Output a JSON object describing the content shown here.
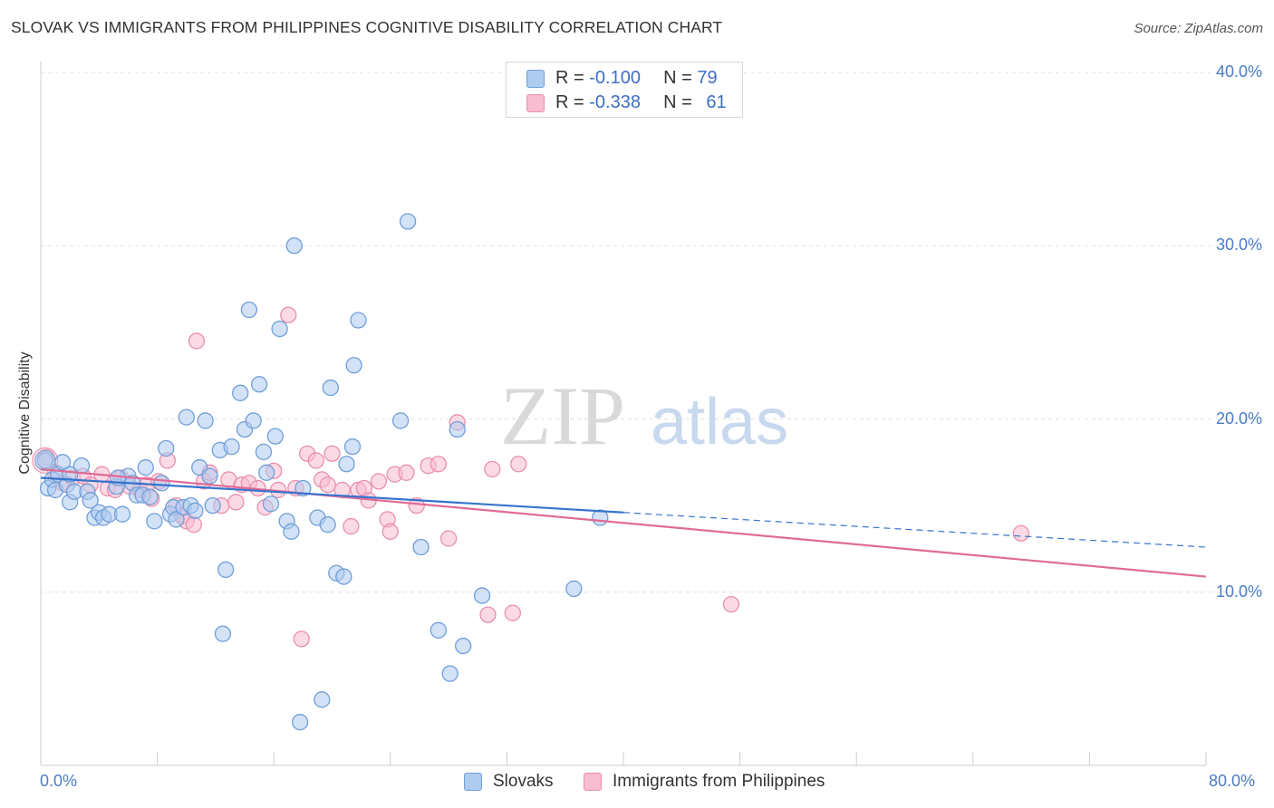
{
  "title": "SLOVAK VS IMMIGRANTS FROM PHILIPPINES COGNITIVE DISABILITY CORRELATION CHART",
  "source": "Source: ZipAtlas.com",
  "watermark": {
    "zip": "ZIP",
    "atlas": "atlas"
  },
  "legend": {
    "rows": [
      {
        "r_label": "R = ",
        "r_value": "-0.100",
        "n_label": "N = ",
        "n_value": "79"
      },
      {
        "r_label": "R = ",
        "r_value": "-0.338",
        "n_label": "N = ",
        "n_value": "61"
      }
    ]
  },
  "colors": {
    "slovaks_fill": "#aecbf0",
    "slovaks_stroke": "#6f9fd8",
    "slovaks_line": "#3674cc",
    "philippines_fill": "#f7bcd0",
    "philippines_stroke": "#e890ae",
    "philippines_line": "#e06a95",
    "grid": "#e2e2e2",
    "tick_text": "#4a7cc4"
  },
  "chart_data": {
    "type": "scatter",
    "title": "SLOVAK VS IMMIGRANTS FROM PHILIPPINES COGNITIVE DISABILITY CORRELATION CHART",
    "xlabel": "",
    "ylabel": "Cognitive Disability",
    "xlim": [
      0,
      80
    ],
    "ylim": [
      0,
      40
    ],
    "y_ticks": [
      "10.0%",
      "20.0%",
      "30.0%",
      "40.0%"
    ],
    "y_tick_values": [
      10,
      20,
      30,
      40
    ],
    "x_tick_labels": [
      "0.0%",
      "80.0%"
    ],
    "grid": true,
    "legend_position": "bottom",
    "series": [
      {
        "name": "Slovaks",
        "r": -0.1,
        "n": 79,
        "trend": {
          "x0": 0,
          "y0": 16.6,
          "x1": 40,
          "y1": 14.6,
          "dashed_to_x": 80,
          "dashed_to_y": 12.6
        },
        "points": [
          [
            0.3,
            17.6
          ],
          [
            0.5,
            16.0
          ],
          [
            0.8,
            16.5
          ],
          [
            1.0,
            15.9
          ],
          [
            1.2,
            16.8
          ],
          [
            1.5,
            17.5
          ],
          [
            1.8,
            16.2
          ],
          [
            2.0,
            15.2
          ],
          [
            2.3,
            15.8
          ],
          [
            2.8,
            17.3
          ],
          [
            3.2,
            15.8
          ],
          [
            3.4,
            15.3
          ],
          [
            3.7,
            14.3
          ],
          [
            4.0,
            14.6
          ],
          [
            4.3,
            14.3
          ],
          [
            4.7,
            14.5
          ],
          [
            5.2,
            16.1
          ],
          [
            5.6,
            14.5
          ],
          [
            6.0,
            16.7
          ],
          [
            6.3,
            16.3
          ],
          [
            6.6,
            15.6
          ],
          [
            7.0,
            15.6
          ],
          [
            7.2,
            17.2
          ],
          [
            7.5,
            15.5
          ],
          [
            7.8,
            14.1
          ],
          [
            8.3,
            16.3
          ],
          [
            8.6,
            18.3
          ],
          [
            8.9,
            14.5
          ],
          [
            9.1,
            14.9
          ],
          [
            9.3,
            14.2
          ],
          [
            9.8,
            14.9
          ],
          [
            10.0,
            20.1
          ],
          [
            10.3,
            15.0
          ],
          [
            10.6,
            14.7
          ],
          [
            10.9,
            17.2
          ],
          [
            11.3,
            19.9
          ],
          [
            11.6,
            16.7
          ],
          [
            11.8,
            15.0
          ],
          [
            12.3,
            18.2
          ],
          [
            12.7,
            11.3
          ],
          [
            12.5,
            7.6
          ],
          [
            13.1,
            18.4
          ],
          [
            13.7,
            21.5
          ],
          [
            14.0,
            19.4
          ],
          [
            14.3,
            26.3
          ],
          [
            14.6,
            19.9
          ],
          [
            15.0,
            22.0
          ],
          [
            15.3,
            18.1
          ],
          [
            15.5,
            16.9
          ],
          [
            15.8,
            15.1
          ],
          [
            16.1,
            19.0
          ],
          [
            16.4,
            25.2
          ],
          [
            16.9,
            14.1
          ],
          [
            17.2,
            13.5
          ],
          [
            17.4,
            30.0
          ],
          [
            17.8,
            2.5
          ],
          [
            18.0,
            16.0
          ],
          [
            19.0,
            14.3
          ],
          [
            19.3,
            3.8
          ],
          [
            19.7,
            13.9
          ],
          [
            19.9,
            21.8
          ],
          [
            20.3,
            11.1
          ],
          [
            20.8,
            10.9
          ],
          [
            21.0,
            17.4
          ],
          [
            21.4,
            18.4
          ],
          [
            21.5,
            23.1
          ],
          [
            21.8,
            25.7
          ],
          [
            24.7,
            19.9
          ],
          [
            25.2,
            31.4
          ],
          [
            26.1,
            12.6
          ],
          [
            27.3,
            7.8
          ],
          [
            28.1,
            5.3
          ],
          [
            28.6,
            19.4
          ],
          [
            29.0,
            6.9
          ],
          [
            30.3,
            9.8
          ],
          [
            36.6,
            10.2
          ],
          [
            38.4,
            14.3
          ],
          [
            2.0,
            16.8
          ],
          [
            5.3,
            16.6
          ]
        ]
      },
      {
        "name": "Immigrants from Philippines",
        "r": -0.338,
        "n": 61,
        "trend": {
          "x0": 0,
          "y0": 17.1,
          "x1": 80,
          "y1": 10.9
        },
        "points": [
          [
            0.4,
            17.8
          ],
          [
            1.0,
            16.9
          ],
          [
            1.5,
            16.3
          ],
          [
            2.2,
            16.6
          ],
          [
            2.9,
            16.7
          ],
          [
            3.4,
            16.2
          ],
          [
            4.2,
            16.8
          ],
          [
            4.6,
            16.0
          ],
          [
            5.1,
            15.9
          ],
          [
            5.5,
            16.6
          ],
          [
            6.1,
            16.1
          ],
          [
            6.8,
            15.9
          ],
          [
            7.3,
            16.2
          ],
          [
            7.6,
            15.4
          ],
          [
            8.1,
            16.4
          ],
          [
            8.7,
            17.6
          ],
          [
            9.3,
            15.0
          ],
          [
            9.7,
            14.4
          ],
          [
            10.0,
            14.1
          ],
          [
            10.5,
            13.9
          ],
          [
            10.7,
            24.5
          ],
          [
            11.2,
            16.4
          ],
          [
            11.6,
            16.9
          ],
          [
            12.4,
            15.0
          ],
          [
            12.9,
            16.5
          ],
          [
            13.4,
            15.2
          ],
          [
            13.8,
            16.2
          ],
          [
            14.3,
            16.3
          ],
          [
            14.9,
            16.0
          ],
          [
            15.4,
            14.9
          ],
          [
            16.0,
            17.0
          ],
          [
            16.3,
            15.9
          ],
          [
            17.0,
            26.0
          ],
          [
            17.5,
            16.0
          ],
          [
            18.3,
            18.0
          ],
          [
            18.9,
            17.6
          ],
          [
            19.3,
            16.5
          ],
          [
            19.7,
            16.2
          ],
          [
            20.0,
            18.0
          ],
          [
            20.7,
            15.9
          ],
          [
            21.3,
            13.8
          ],
          [
            21.8,
            15.9
          ],
          [
            22.2,
            16.0
          ],
          [
            22.5,
            15.3
          ],
          [
            23.2,
            16.4
          ],
          [
            23.8,
            14.2
          ],
          [
            24.3,
            16.8
          ],
          [
            25.1,
            16.9
          ],
          [
            25.8,
            15.0
          ],
          [
            26.6,
            17.3
          ],
          [
            27.3,
            17.4
          ],
          [
            28.0,
            13.1
          ],
          [
            28.6,
            19.8
          ],
          [
            30.7,
            8.7
          ],
          [
            31.0,
            17.1
          ],
          [
            32.4,
            8.8
          ],
          [
            17.9,
            7.3
          ],
          [
            24.0,
            13.5
          ],
          [
            32.8,
            17.4
          ],
          [
            47.4,
            9.3
          ],
          [
            67.3,
            13.4
          ]
        ]
      }
    ]
  }
}
